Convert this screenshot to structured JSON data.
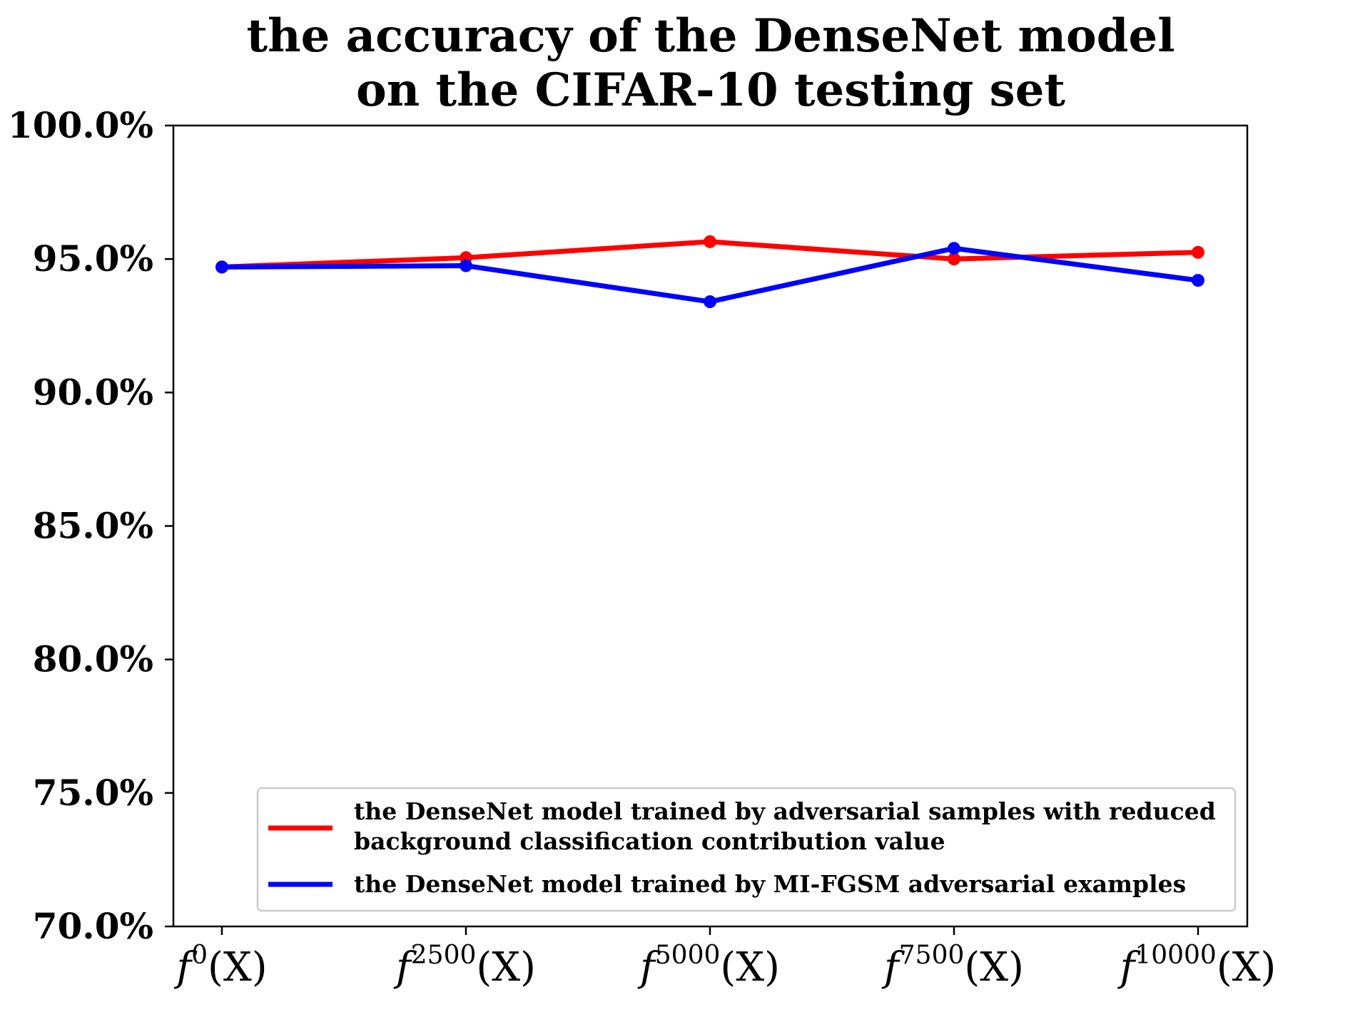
{
  "chart_data": {
    "type": "line",
    "title": [
      "the accuracy of the DenseNet model",
      "on the CIFAR-10 testing set"
    ],
    "categories": [
      {
        "base": "f",
        "sup": "0",
        "arg": "(X)"
      },
      {
        "base": "f",
        "sup": "2500",
        "arg": "(X)"
      },
      {
        "base": "f",
        "sup": "5000",
        "arg": "(X)"
      },
      {
        "base": "f",
        "sup": "7500",
        "arg": "(X)"
      },
      {
        "base": "f",
        "sup": "10000",
        "arg": "(X)"
      }
    ],
    "ylim": [
      70.0,
      100.0
    ],
    "yticks": [
      70.0,
      75.0,
      80.0,
      85.0,
      90.0,
      95.0,
      100.0
    ],
    "ytick_labels": [
      "70.0%",
      "75.0%",
      "80.0%",
      "85.0%",
      "90.0%",
      "95.0%",
      "100.0%"
    ],
    "xlabel": "",
    "ylabel": "",
    "grid": false,
    "legend_position": "lower-right",
    "series": [
      {
        "name": [
          "the DenseNet model trained by adversarial samples with reduced",
          "background classification contribution value"
        ],
        "color": "#ff0000",
        "values": [
          94.7,
          95.05,
          95.65,
          95.0,
          95.25
        ]
      },
      {
        "name": [
          "the DenseNet model trained by MI-FGSM adversarial examples"
        ],
        "color": "#0000ff",
        "values": [
          94.7,
          94.75,
          93.4,
          95.4,
          94.2
        ]
      }
    ]
  }
}
